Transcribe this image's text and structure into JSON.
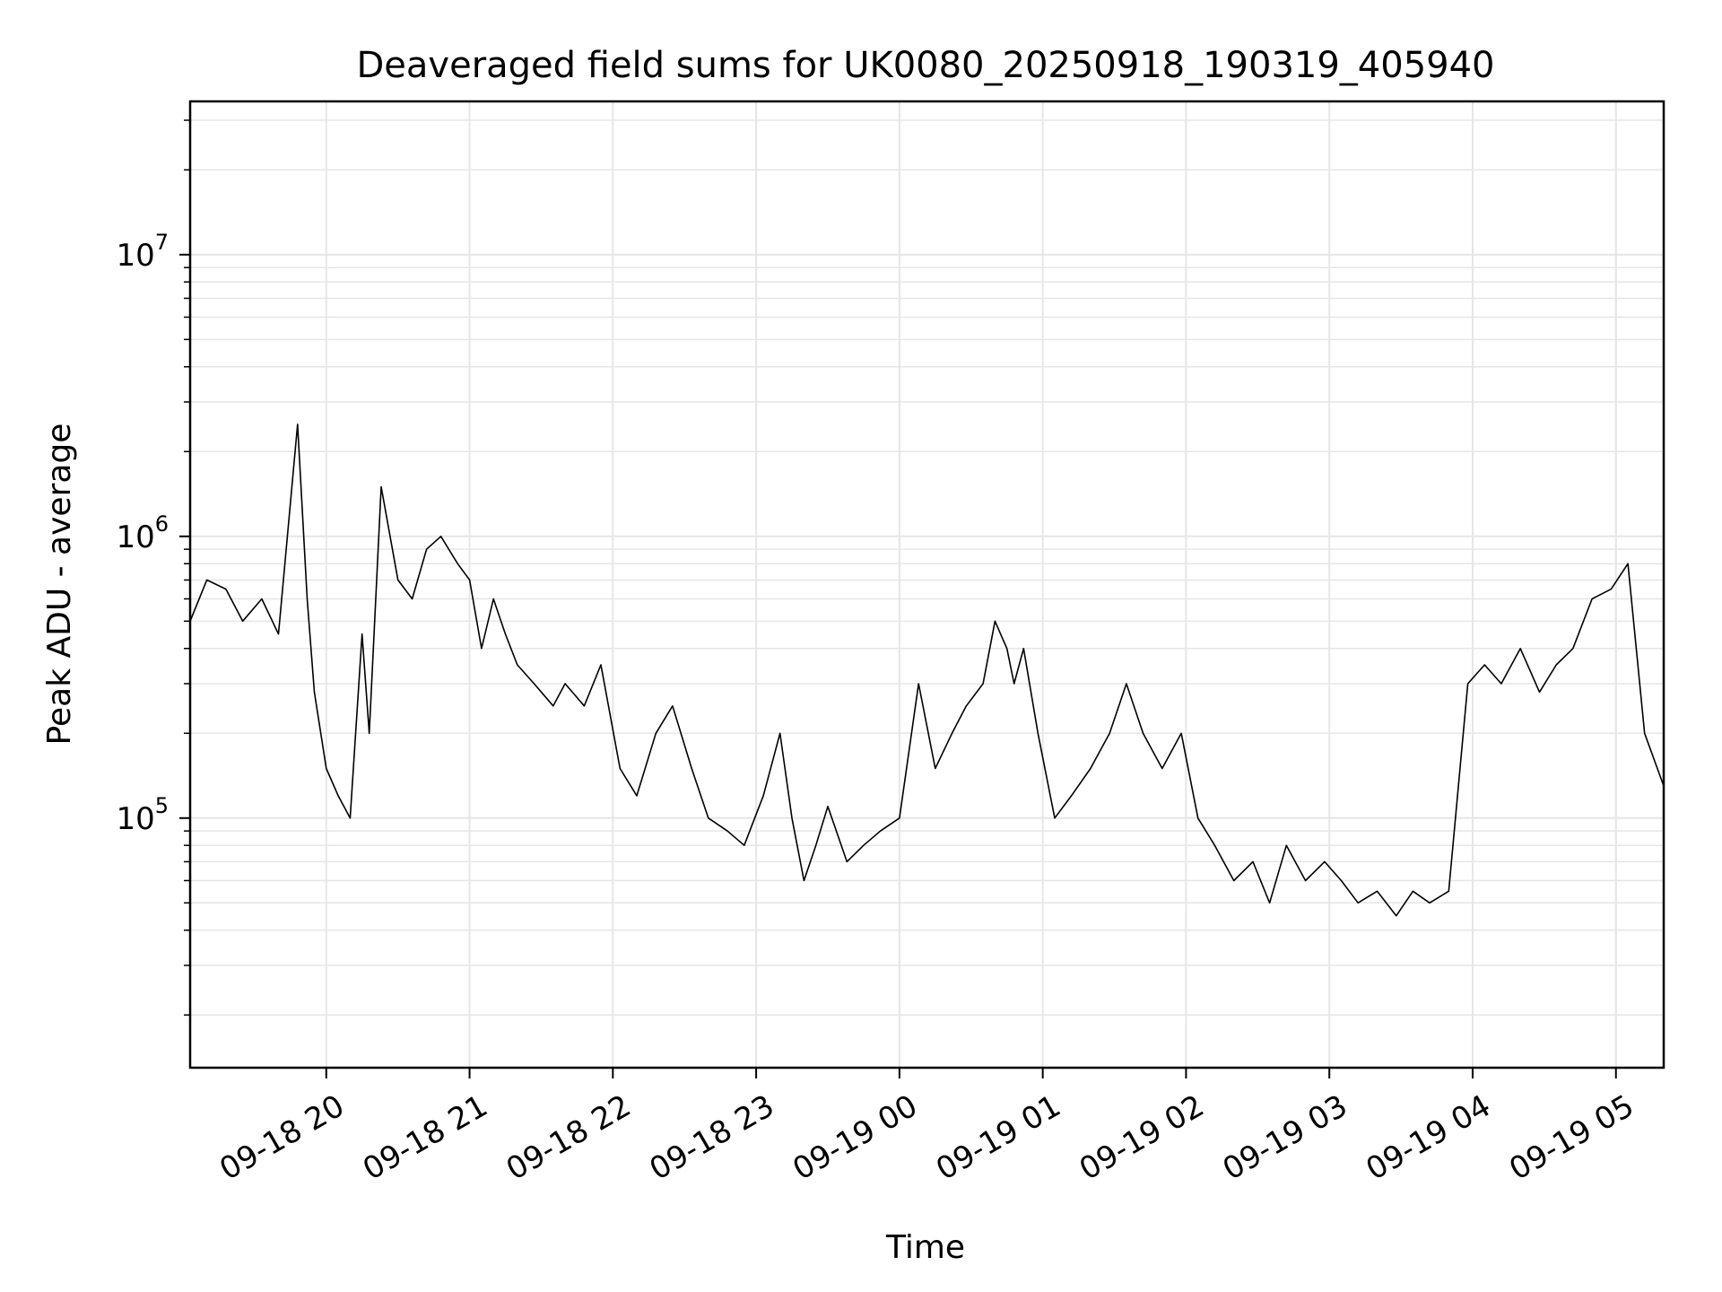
{
  "chart_data": {
    "type": "line",
    "title": "Deaveraged field sums for UK0080_20250918_190319_405940",
    "xlabel": "Time",
    "ylabel": "Peak ADU - average",
    "yscale": "log",
    "grid": true,
    "legend": "none",
    "line_color": "#000000",
    "grid_color": "#e6e6e6",
    "xlim": [
      "2025-09-18 19:03",
      "2025-09-19 05:20"
    ],
    "ylim": [
      13000,
      35000000
    ],
    "x_ticks": [
      {
        "value": "2025-09-18 20:00",
        "label": "09-18 20"
      },
      {
        "value": "2025-09-18 21:00",
        "label": "09-18 21"
      },
      {
        "value": "2025-09-18 22:00",
        "label": "09-18 22"
      },
      {
        "value": "2025-09-18 23:00",
        "label": "09-18 23"
      },
      {
        "value": "2025-09-19 00:00",
        "label": "09-19 00"
      },
      {
        "value": "2025-09-19 01:00",
        "label": "09-19 01"
      },
      {
        "value": "2025-09-19 02:00",
        "label": "09-19 02"
      },
      {
        "value": "2025-09-19 03:00",
        "label": "09-19 03"
      },
      {
        "value": "2025-09-19 04:00",
        "label": "09-19 04"
      },
      {
        "value": "2025-09-19 05:00",
        "label": "09-19 05"
      }
    ],
    "y_ticks": [
      {
        "value": 100000,
        "base": "10",
        "exp": "5"
      },
      {
        "value": 1000000,
        "base": "10",
        "exp": "6"
      },
      {
        "value": 10000000,
        "base": "10",
        "exp": "7"
      }
    ],
    "series": [
      {
        "x": [
          "2025-09-18 19:03",
          "2025-09-18 19:10",
          "2025-09-18 19:18",
          "2025-09-18 19:25",
          "2025-09-18 19:33",
          "2025-09-18 19:40",
          "2025-09-18 19:48",
          "2025-09-18 19:52",
          "2025-09-18 19:55",
          "2025-09-18 20:00",
          "2025-09-18 20:05",
          "2025-09-18 20:10",
          "2025-09-18 20:15",
          "2025-09-18 20:18",
          "2025-09-18 20:23",
          "2025-09-18 20:30",
          "2025-09-18 20:36",
          "2025-09-18 20:42",
          "2025-09-18 20:48",
          "2025-09-18 20:55",
          "2025-09-18 21:00",
          "2025-09-18 21:05",
          "2025-09-18 21:10",
          "2025-09-18 21:15",
          "2025-09-18 21:20",
          "2025-09-18 21:27",
          "2025-09-18 21:35",
          "2025-09-18 21:40",
          "2025-09-18 21:48",
          "2025-09-18 21:55",
          "2025-09-18 22:03",
          "2025-09-18 22:10",
          "2025-09-18 22:18",
          "2025-09-18 22:25",
          "2025-09-18 22:33",
          "2025-09-18 22:40",
          "2025-09-18 22:48",
          "2025-09-18 22:55",
          "2025-09-18 23:03",
          "2025-09-18 23:10",
          "2025-09-18 23:15",
          "2025-09-18 23:20",
          "2025-09-18 23:25",
          "2025-09-18 23:30",
          "2025-09-18 23:38",
          "2025-09-18 23:45",
          "2025-09-18 23:52",
          "2025-09-19 00:00",
          "2025-09-19 00:08",
          "2025-09-19 00:15",
          "2025-09-19 00:22",
          "2025-09-19 00:28",
          "2025-09-19 00:35",
          "2025-09-19 00:40",
          "2025-09-19 00:45",
          "2025-09-19 00:48",
          "2025-09-19 00:52",
          "2025-09-19 00:58",
          "2025-09-19 01:05",
          "2025-09-19 01:12",
          "2025-09-19 01:20",
          "2025-09-19 01:28",
          "2025-09-19 01:35",
          "2025-09-19 01:42",
          "2025-09-19 01:50",
          "2025-09-19 01:58",
          "2025-09-19 02:05",
          "2025-09-19 02:12",
          "2025-09-19 02:20",
          "2025-09-19 02:28",
          "2025-09-19 02:35",
          "2025-09-19 02:42",
          "2025-09-19 02:50",
          "2025-09-19 02:58",
          "2025-09-19 03:05",
          "2025-09-19 03:12",
          "2025-09-19 03:20",
          "2025-09-19 03:28",
          "2025-09-19 03:35",
          "2025-09-19 03:42",
          "2025-09-19 03:50",
          "2025-09-19 03:58",
          "2025-09-19 04:05",
          "2025-09-19 04:12",
          "2025-09-19 04:20",
          "2025-09-19 04:28",
          "2025-09-19 04:35",
          "2025-09-19 04:42",
          "2025-09-19 04:50",
          "2025-09-19 04:58",
          "2025-09-19 05:05",
          "2025-09-19 05:12",
          "2025-09-19 05:20"
        ],
        "y": [
          500000,
          700000,
          650000,
          500000,
          600000,
          450000,
          2500000,
          600000,
          280000,
          150000,
          120000,
          100000,
          450000,
          200000,
          1500000,
          700000,
          600000,
          900000,
          1000000,
          800000,
          700000,
          400000,
          600000,
          450000,
          350000,
          300000,
          250000,
          300000,
          250000,
          350000,
          150000,
          120000,
          200000,
          250000,
          150000,
          100000,
          90000,
          80000,
          120000,
          200000,
          100000,
          60000,
          80000,
          110000,
          70000,
          80000,
          90000,
          100000,
          300000,
          150000,
          200000,
          250000,
          300000,
          500000,
          400000,
          300000,
          400000,
          200000,
          100000,
          120000,
          150000,
          200000,
          300000,
          200000,
          150000,
          200000,
          100000,
          80000,
          60000,
          70000,
          50000,
          80000,
          60000,
          70000,
          60000,
          50000,
          55000,
          45000,
          55000,
          50000,
          55000,
          300000,
          350000,
          300000,
          400000,
          280000,
          350000,
          400000,
          600000,
          650000,
          800000,
          200000,
          130000
        ]
      }
    ]
  }
}
